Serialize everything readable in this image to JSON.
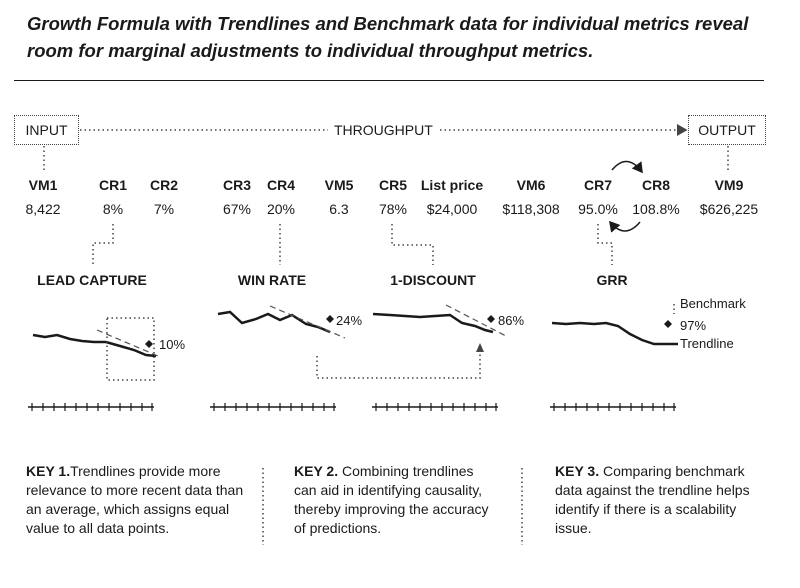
{
  "title": "Growth Formula with Trendlines and Benchmark data for individual metrics reveal room for marginal adjustments to individual throughput metrics.",
  "flow": {
    "input": "INPUT",
    "throughput": "THROUGHPUT",
    "output": "OUTPUT"
  },
  "metrics": [
    {
      "name": "VM1",
      "value": "8,422"
    },
    {
      "name": "CR1",
      "value": "8%"
    },
    {
      "name": "CR2",
      "value": "7%"
    },
    {
      "name": "CR3",
      "value": "67%"
    },
    {
      "name": "CR4",
      "value": "20%"
    },
    {
      "name": "VM5",
      "value": "6.3"
    },
    {
      "name": "CR5",
      "value": "78%"
    },
    {
      "name": "List price",
      "value": "$24,000"
    },
    {
      "name": "VM6",
      "value": "$118,308"
    },
    {
      "name": "CR7",
      "value": "95.0%"
    },
    {
      "name": "CR8",
      "value": "108.8%"
    },
    {
      "name": "VM9",
      "value": "$626,225"
    }
  ],
  "sections": [
    {
      "title": "LEAD CAPTURE",
      "benchmark": "10%"
    },
    {
      "title": "WIN RATE",
      "benchmark": "24%"
    },
    {
      "title": "1-DISCOUNT",
      "benchmark": "86%"
    },
    {
      "title": "GRR",
      "benchmark": "97%",
      "benchmark_label": "Benchmark",
      "trendline_label": "Trendline"
    }
  ],
  "keys": [
    {
      "label": "KEY 1.",
      "text": "Trendlines provide more relevance to more recent data than an average, which assigns equal value to all data points."
    },
    {
      "label": "KEY 2.",
      "text": " Combining trendlines can aid in identifying causality, thereby improving the accuracy of predictions."
    },
    {
      "label": "KEY 3.",
      "text": " Comparing benchmark data against the trendline helps identify if there is a scalability issue."
    }
  ],
  "colors": {
    "ink": "#1a1a1a",
    "dotted": "#444444"
  }
}
